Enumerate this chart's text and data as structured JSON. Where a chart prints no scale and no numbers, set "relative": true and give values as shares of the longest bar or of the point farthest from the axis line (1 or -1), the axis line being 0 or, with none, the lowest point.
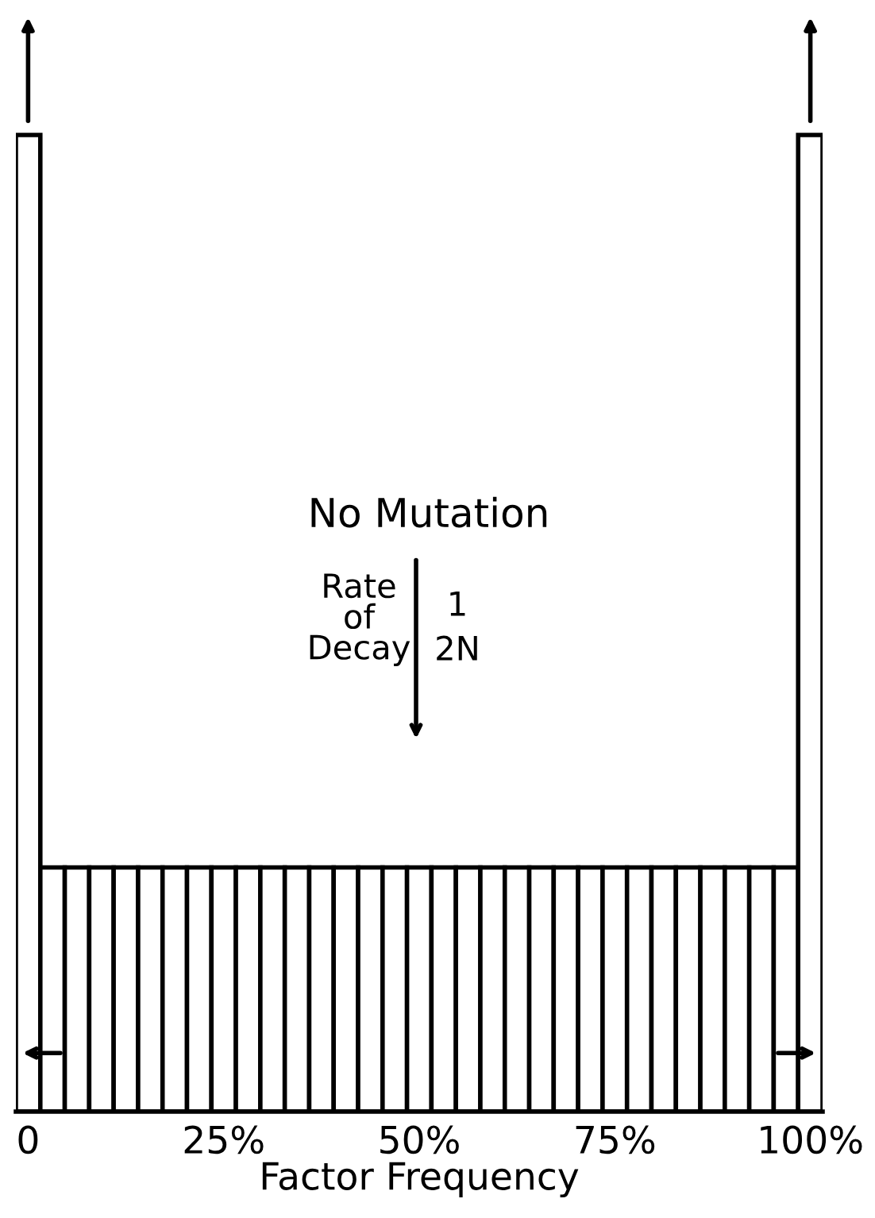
{
  "chart_data": {
    "type": "bar",
    "relative": true,
    "x": [
      0,
      3.125,
      6.25,
      9.375,
      12.5,
      15.625,
      18.75,
      21.875,
      25,
      28.125,
      31.25,
      34.375,
      37.5,
      40.625,
      43.75,
      46.875,
      50,
      53.125,
      56.25,
      59.375,
      62.5,
      65.625,
      68.75,
      71.875,
      75,
      78.125,
      81.25,
      84.375,
      87.5,
      90.625,
      93.75,
      96.875,
      100
    ],
    "values": [
      1,
      0.25,
      0.25,
      0.25,
      0.25,
      0.25,
      0.25,
      0.25,
      0.25,
      0.25,
      0.25,
      0.25,
      0.25,
      0.25,
      0.25,
      0.25,
      0.25,
      0.25,
      0.25,
      0.25,
      0.25,
      0.25,
      0.25,
      0.25,
      0.25,
      0.25,
      0.25,
      0.25,
      0.25,
      0.25,
      0.25,
      0.25,
      1
    ],
    "color": "#ffffff",
    "xlim": [
      -1.5625,
      101.5625
    ],
    "xticks": [
      {
        "value": 0,
        "label": "0"
      },
      {
        "value": 25,
        "label": "25%"
      },
      {
        "value": 50,
        "label": "50%"
      },
      {
        "value": 75,
        "label": "75%"
      },
      {
        "value": 100,
        "label": "100%"
      }
    ],
    "xlabel": "Factor Frequency",
    "annotations": [
      "No Mutation",
      "Rate\nof\nDecay",
      "1",
      "2N"
    ],
    "grid": false
  }
}
